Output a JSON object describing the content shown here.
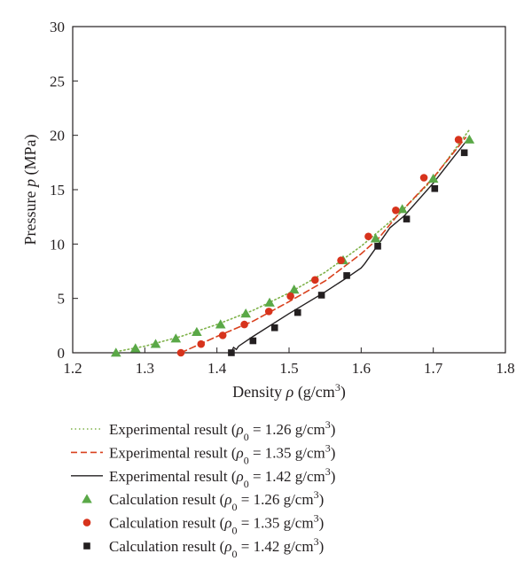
{
  "chart_data": {
    "type": "line",
    "title": "",
    "xlabel": "Density ρ (g/cm³)",
    "ylabel": "Pressure p (MPa)",
    "xlim": [
      1.2,
      1.8
    ],
    "ylim": [
      0,
      30
    ],
    "xticks": [
      "1.2",
      "1.3",
      "1.4",
      "1.5",
      "1.6",
      "1.7",
      "1.8"
    ],
    "yticks": [
      "0",
      "5",
      "10",
      "15",
      "20",
      "25",
      "30"
    ],
    "grid": false,
    "legend_position": "below",
    "series": [
      {
        "name": "Experimental result (ρ0 = 1.26 g/cm3)",
        "kind": "line",
        "style": "dotted",
        "color": "#7fb24a",
        "points": [
          [
            1.26,
            0.1
          ],
          [
            1.3,
            0.6
          ],
          [
            1.35,
            1.5
          ],
          [
            1.4,
            2.6
          ],
          [
            1.45,
            3.9
          ],
          [
            1.5,
            5.5
          ],
          [
            1.55,
            7.4
          ],
          [
            1.6,
            9.8
          ],
          [
            1.65,
            12.6
          ],
          [
            1.7,
            16.0
          ],
          [
            1.75,
            20.5
          ]
        ]
      },
      {
        "name": "Experimental result (ρ0 = 1.35 g/cm3)",
        "kind": "line",
        "style": "dashed",
        "color": "#d9411e",
        "points": [
          [
            1.35,
            0.0
          ],
          [
            1.37,
            0.6
          ],
          [
            1.4,
            1.5
          ],
          [
            1.45,
            2.9
          ],
          [
            1.5,
            4.7
          ],
          [
            1.55,
            6.6
          ],
          [
            1.6,
            9.1
          ],
          [
            1.625,
            10.6
          ],
          [
            1.65,
            12.6
          ],
          [
            1.7,
            16.1
          ],
          [
            1.745,
            19.8
          ]
        ]
      },
      {
        "name": "Experimental result (ρ0 = 1.42 g/cm3)",
        "kind": "line",
        "style": "solid",
        "color": "#231f20",
        "points": [
          [
            1.42,
            0.05
          ],
          [
            1.423,
            0.5
          ],
          [
            1.427,
            0.3
          ],
          [
            1.43,
            0.6
          ],
          [
            1.45,
            1.5
          ],
          [
            1.5,
            3.6
          ],
          [
            1.55,
            5.6
          ],
          [
            1.58,
            6.9
          ],
          [
            1.6,
            7.8
          ],
          [
            1.605,
            8.2
          ],
          [
            1.62,
            9.6
          ],
          [
            1.64,
            11.5
          ],
          [
            1.66,
            12.6
          ],
          [
            1.7,
            15.6
          ],
          [
            1.72,
            17.3
          ],
          [
            1.745,
            19.4
          ]
        ]
      },
      {
        "name": "Calculation result (ρ0 = 1.26 g/cm3)",
        "kind": "marker",
        "marker": "triangle",
        "color": "#5aa847",
        "points": [
          [
            1.26,
            0.0
          ],
          [
            1.287,
            0.4
          ],
          [
            1.315,
            0.8
          ],
          [
            1.343,
            1.3
          ],
          [
            1.372,
            1.9
          ],
          [
            1.405,
            2.6
          ],
          [
            1.44,
            3.6
          ],
          [
            1.473,
            4.6
          ],
          [
            1.507,
            5.8
          ],
          [
            1.575,
            8.5
          ],
          [
            1.62,
            10.5
          ],
          [
            1.657,
            13.2
          ],
          [
            1.7,
            16.0
          ],
          [
            1.75,
            19.6
          ]
        ]
      },
      {
        "name": "Calculation result (ρ0 = 1.35 g/cm3)",
        "kind": "marker",
        "marker": "circle",
        "color": "#d7331c",
        "points": [
          [
            1.35,
            0.0
          ],
          [
            1.378,
            0.8
          ],
          [
            1.408,
            1.6
          ],
          [
            1.438,
            2.6
          ],
          [
            1.472,
            3.8
          ],
          [
            1.502,
            5.2
          ],
          [
            1.536,
            6.7
          ],
          [
            1.572,
            8.5
          ],
          [
            1.61,
            10.7
          ],
          [
            1.648,
            13.1
          ],
          [
            1.687,
            16.1
          ],
          [
            1.735,
            19.6
          ]
        ]
      },
      {
        "name": "Calculation result (ρ0 = 1.42 g/cm3)",
        "kind": "marker",
        "marker": "square",
        "color": "#231f20",
        "points": [
          [
            1.42,
            0.0
          ],
          [
            1.45,
            1.1
          ],
          [
            1.48,
            2.3
          ],
          [
            1.512,
            3.7
          ],
          [
            1.545,
            5.3
          ],
          [
            1.58,
            7.1
          ],
          [
            1.623,
            9.8
          ],
          [
            1.663,
            12.3
          ],
          [
            1.702,
            15.1
          ],
          [
            1.743,
            18.4
          ]
        ]
      }
    ]
  }
}
